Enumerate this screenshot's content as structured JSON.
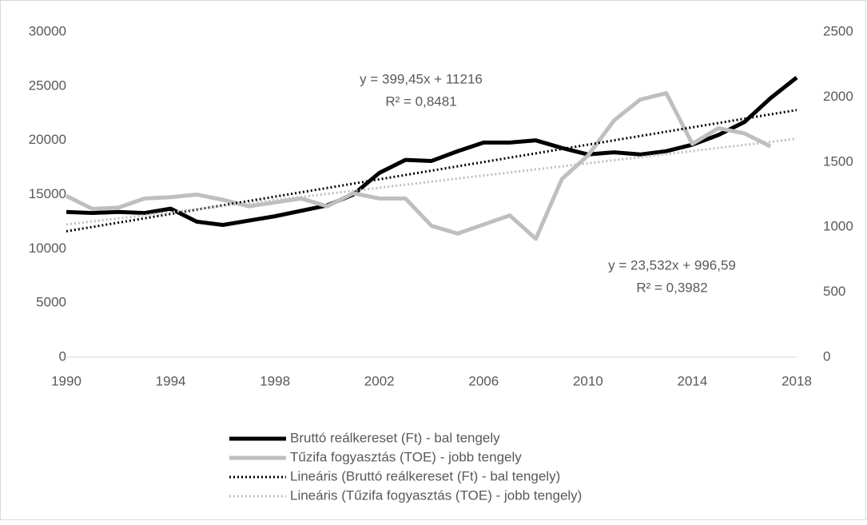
{
  "chart_data": {
    "type": "line",
    "x": [
      1990,
      1991,
      1992,
      1993,
      1994,
      1995,
      1996,
      1997,
      1998,
      1999,
      2000,
      2001,
      2002,
      2003,
      2004,
      2005,
      2006,
      2007,
      2008,
      2009,
      2010,
      2011,
      2012,
      2013,
      2014,
      2015,
      2016,
      2017,
      2018
    ],
    "xlim": [
      1990,
      2018
    ],
    "xticks": [
      1990,
      1994,
      1998,
      2002,
      2006,
      2010,
      2014,
      2018
    ],
    "ylim": [
      0,
      30000
    ],
    "yticks": [
      0,
      5000,
      10000,
      15000,
      20000,
      25000,
      30000
    ],
    "y2lim": [
      0,
      2500
    ],
    "y2ticks": [
      0,
      500,
      1000,
      1500,
      2000,
      2500
    ],
    "series": [
      {
        "name": "Bruttó reálkereset (Ft) - bal tengely",
        "color": "#000000",
        "style": "solid",
        "values": [
          13400,
          13300,
          13400,
          13300,
          13700,
          12500,
          12200,
          12600,
          13000,
          13500,
          14000,
          15000,
          17000,
          18200,
          18100,
          19000,
          19800,
          19800,
          20000,
          19300,
          18700,
          18900,
          18700,
          19000,
          19600,
          20500,
          21700,
          23900,
          25800
        ]
      },
      {
        "name": "Tűzifa fogyasztás (TOE) - jobb tengely",
        "color": "#bfbfbf",
        "style": "solid",
        "axis": "y2",
        "values": [
          1240,
          1140,
          1150,
          1220,
          1230,
          1250,
          1210,
          1160,
          1190,
          1220,
          1160,
          1260,
          1220,
          1220,
          1010,
          950,
          1020,
          1090,
          910,
          1370,
          1550,
          1820,
          1980,
          2030,
          1640,
          1760,
          1720,
          1620,
          null
        ]
      },
      {
        "name": "Lineáris (Bruttó reálkereset (Ft) - bal tengely)",
        "color": "#000000",
        "style": "dotted",
        "x": [
          1990,
          2018
        ],
        "values": [
          11615,
          22800
        ]
      },
      {
        "name": "Lineáris (Tűzifa fogyasztás (TOE) - jobb tengely)",
        "color": "#bfbfbf",
        "style": "dotted",
        "axis": "y2",
        "x": [
          1990,
          2018
        ],
        "values": [
          1020,
          1679
        ]
      }
    ],
    "annotations": [
      "y = 399,45x + 11216",
      "R² = 0,8481",
      "y = 23,532x + 996,59",
      "R² = 0,3982"
    ],
    "legend": "bottom"
  }
}
